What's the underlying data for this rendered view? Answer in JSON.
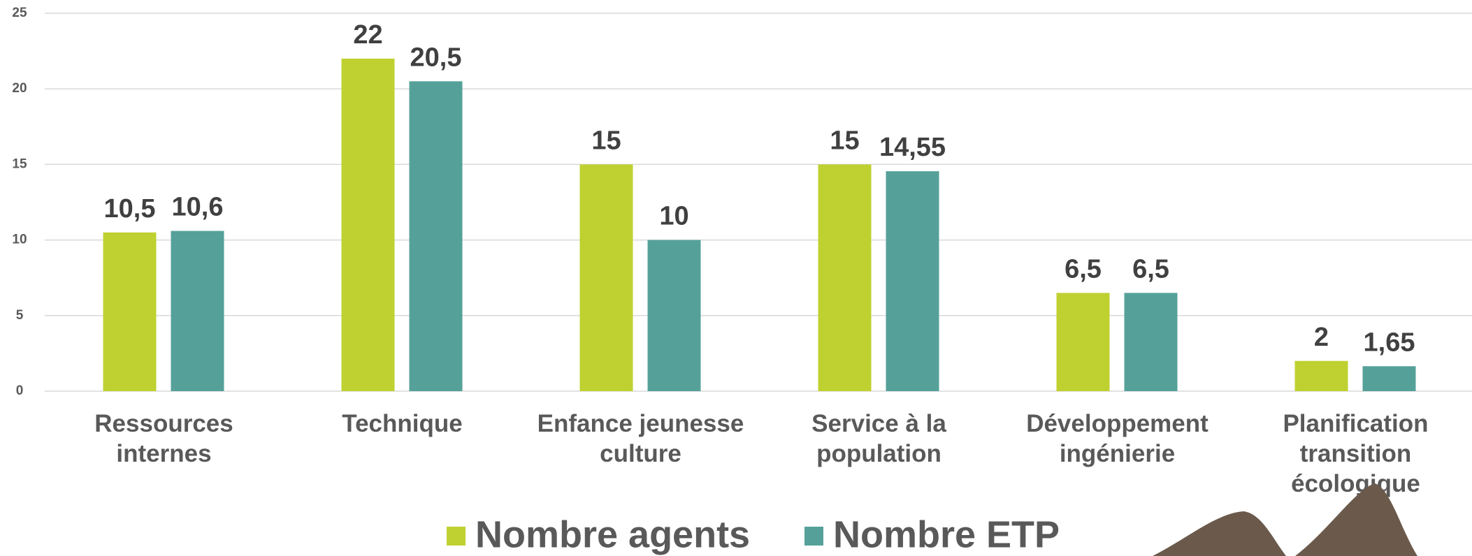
{
  "chart_data": {
    "type": "bar",
    "categories": [
      "Ressources internes",
      "Technique",
      "Enfance jeunesse culture",
      "Service à la population",
      "Développement ingénierie",
      "Planification transition écologique"
    ],
    "series": [
      {
        "name": "Nombre agents",
        "color": "#bfd130",
        "values": [
          10.5,
          22,
          15,
          15,
          6.5,
          2
        ],
        "value_labels": [
          "10,5",
          "22",
          "15",
          "15",
          "6,5",
          "2"
        ]
      },
      {
        "name": "Nombre ETP",
        "color": "#55a19a",
        "values": [
          10.6,
          20.5,
          10,
          14.55,
          6.5,
          1.65
        ],
        "value_labels": [
          "10,6",
          "20,5",
          "10",
          "14,55",
          "6,5",
          "1,65"
        ]
      }
    ],
    "ylim": [
      0,
      25
    ],
    "yticks": [
      0,
      5,
      10,
      15,
      20,
      25
    ],
    "grid": true,
    "legend": "bottom"
  }
}
